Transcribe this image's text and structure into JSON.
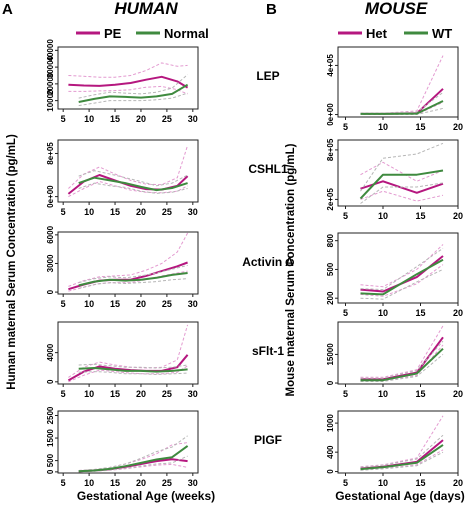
{
  "figure": {
    "panel_a": {
      "letter": "A",
      "title": "HUMAN",
      "legend": [
        "PE",
        "Normal"
      ],
      "ylabel": "Human maternal Serum Concentration (pg/mL)",
      "xlabel": "Gestational Age (weeks)"
    },
    "panel_b": {
      "letter": "B",
      "title": "MOUSE",
      "legend": [
        "Het",
        "WT"
      ],
      "ylabel": "Mouse maternal Serum Concentration (pg/mL)",
      "xlabel": "Gestational Age (days)"
    },
    "analytes": [
      "LEP",
      "CSHL1",
      "Activin A",
      "sFlt-1",
      "PIGF"
    ]
  },
  "colors": {
    "case": "#b5177f",
    "control": "#3f8a3f",
    "case_ci": "#e39ad0",
    "control_ci": "#b6b6b6"
  },
  "chart_data": [
    {
      "type": "line",
      "panel": "A",
      "analyte": "LEP",
      "ylim": [
        5000,
        42000
      ],
      "yticks": [
        "10000",
        "20000",
        "30000",
        "40000"
      ],
      "xlim": [
        4,
        31
      ],
      "xticks": [
        "5",
        "10",
        "15",
        "20",
        "25",
        "30"
      ],
      "series": [
        {
          "name": "PE",
          "x": [
            6,
            9,
            12,
            15,
            18,
            21,
            24,
            27,
            29
          ],
          "y": [
            19500,
            19000,
            18800,
            19500,
            20500,
            22500,
            24200,
            21500,
            17800
          ],
          "lower": [
            15500,
            15500,
            15800,
            16000,
            16500,
            18000,
            18500,
            16500,
            14000
          ],
          "upper": [
            25000,
            24500,
            24000,
            24000,
            25000,
            28000,
            32500,
            30500,
            31000
          ]
        },
        {
          "name": "Normal",
          "x": [
            8,
            11,
            14,
            17,
            20,
            23,
            26,
            29
          ],
          "y": [
            9200,
            11000,
            12500,
            12200,
            11800,
            12500,
            14000,
            19500
          ],
          "lower": [
            7000,
            8500,
            10000,
            10000,
            10000,
            10500,
            11500,
            14500
          ],
          "upper": [
            11500,
            13500,
            15000,
            14500,
            14000,
            15000,
            17500,
            25500
          ]
        }
      ]
    },
    {
      "type": "line",
      "panel": "A",
      "analyte": "CSHL1",
      "ylim": [
        -100000,
        1050000
      ],
      "yticks": [
        "0e+00",
        "8e+05"
      ],
      "xlim": [
        4,
        31
      ],
      "xticks": [
        "5",
        "10",
        "15",
        "20",
        "25",
        "30"
      ],
      "series": [
        {
          "name": "PE",
          "x": [
            6,
            9,
            12,
            15,
            18,
            21,
            24,
            27,
            29
          ],
          "y": [
            50000,
            280000,
            400000,
            300000,
            200000,
            140000,
            130000,
            200000,
            380000
          ],
          "lower": [
            0,
            150000,
            280000,
            200000,
            120000,
            80000,
            70000,
            100000,
            200000
          ],
          "upper": [
            150000,
            420000,
            550000,
            420000,
            300000,
            230000,
            220000,
            350000,
            950000
          ]
        },
        {
          "name": "Normal",
          "x": [
            8,
            11,
            14,
            17,
            20,
            23,
            26,
            29
          ],
          "y": [
            250000,
            350000,
            300000,
            250000,
            180000,
            120000,
            160000,
            250000
          ],
          "lower": [
            150000,
            250000,
            200000,
            170000,
            100000,
            60000,
            80000,
            150000
          ],
          "upper": [
            380000,
            480000,
            420000,
            350000,
            280000,
            200000,
            250000,
            400000
          ]
        }
      ]
    },
    {
      "type": "line",
      "panel": "A",
      "analyte": "Activin A",
      "ylim": [
        -200,
        6300
      ],
      "yticks": [
        "0",
        "3000",
        "6000"
      ],
      "xlim": [
        4,
        31
      ],
      "xticks": [
        "5",
        "10",
        "15",
        "20",
        "25",
        "30"
      ],
      "series": [
        {
          "name": "PE",
          "x": [
            6,
            9,
            12,
            15,
            18,
            21,
            24,
            27,
            29
          ],
          "y": [
            300,
            800,
            1200,
            1300,
            1300,
            1700,
            2200,
            2700,
            3100
          ],
          "lower": [
            100,
            500,
            900,
            1000,
            1000,
            1300,
            1700,
            2000,
            2200
          ],
          "upper": [
            600,
            1200,
            1600,
            1700,
            1800,
            2300,
            3000,
            4200,
            6200
          ]
        },
        {
          "name": "Normal",
          "x": [
            8,
            11,
            14,
            17,
            20,
            23,
            26,
            29
          ],
          "y": [
            700,
            1100,
            1300,
            1200,
            1300,
            1500,
            1800,
            2000
          ],
          "lower": [
            400,
            800,
            1000,
            900,
            1000,
            1100,
            1300,
            1400
          ],
          "upper": [
            1000,
            1400,
            1600,
            1500,
            1700,
            2000,
            2400,
            2800
          ]
        }
      ]
    },
    {
      "type": "line",
      "panel": "A",
      "analyte": "sFlt-1",
      "ylim": [
        -300,
        8200
      ],
      "yticks": [
        "0",
        "4000"
      ],
      "xlim": [
        4,
        31
      ],
      "xticks": [
        "5",
        "10",
        "15",
        "20",
        "25",
        "30"
      ],
      "series": [
        {
          "name": "PE",
          "x": [
            6,
            9,
            12,
            15,
            18,
            21,
            24,
            27,
            29
          ],
          "y": [
            200,
            1400,
            2100,
            1800,
            1600,
            1500,
            1500,
            2000,
            3700
          ],
          "lower": [
            0,
            900,
            1600,
            1400,
            1200,
            1100,
            1100,
            1300,
            2200
          ],
          "upper": [
            600,
            2000,
            2700,
            2300,
            2000,
            1900,
            2000,
            3000,
            7800
          ]
        },
        {
          "name": "Normal",
          "x": [
            8,
            11,
            14,
            17,
            20,
            23,
            26,
            29
          ],
          "y": [
            1800,
            1900,
            1700,
            1500,
            1500,
            1400,
            1500,
            1700
          ],
          "lower": [
            1300,
            1400,
            1300,
            1100,
            1100,
            1000,
            1100,
            1200
          ],
          "upper": [
            2300,
            2400,
            2200,
            2000,
            2000,
            1900,
            2000,
            2300
          ]
        }
      ]
    },
    {
      "type": "line",
      "panel": "A",
      "analyte": "PIGF",
      "ylim": [
        -50,
        2700
      ],
      "yticks": [
        "0",
        "500",
        "1500",
        "2500"
      ],
      "xlim": [
        4,
        31
      ],
      "xticks": [
        "5",
        "10",
        "15",
        "20",
        "25",
        "30"
      ],
      "series": [
        {
          "name": "PE",
          "x": [
            8,
            11,
            14,
            17,
            20,
            23,
            26,
            29
          ],
          "y": [
            30,
            60,
            120,
            220,
            350,
            480,
            560,
            480
          ],
          "lower": [
            10,
            30,
            70,
            140,
            220,
            300,
            330,
            200
          ],
          "upper": [
            60,
            110,
            200,
            350,
            550,
            800,
            1200,
            1300
          ]
        },
        {
          "name": "Normal",
          "x": [
            8,
            11,
            14,
            17,
            20,
            23,
            26,
            29
          ],
          "y": [
            30,
            60,
            130,
            250,
            400,
            550,
            650,
            1150
          ],
          "lower": [
            10,
            30,
            80,
            160,
            260,
            350,
            400,
            700
          ],
          "upper": [
            60,
            100,
            200,
            350,
            600,
            900,
            1100,
            1600
          ]
        }
      ]
    },
    {
      "type": "line",
      "panel": "B",
      "analyte": "LEP",
      "ylim": [
        -20000,
        550000
      ],
      "yticks": [
        "0e+00",
        "4e+05"
      ],
      "xlim": [
        4,
        20
      ],
      "xticks": [
        "5",
        "10",
        "15",
        "20"
      ],
      "series": [
        {
          "name": "Het",
          "x": [
            7,
            10,
            14.5,
            18
          ],
          "y": [
            5000,
            5000,
            10000,
            210000
          ],
          "lower": [
            0,
            0,
            0,
            100000
          ],
          "upper": [
            10000,
            10000,
            30000,
            480000
          ]
        },
        {
          "name": "WT",
          "x": [
            7,
            10,
            14.5,
            18
          ],
          "y": [
            5000,
            5000,
            8000,
            110000
          ],
          "lower": [
            0,
            0,
            0,
            50000
          ],
          "upper": [
            10000,
            10000,
            20000,
            180000
          ]
        }
      ]
    },
    {
      "type": "line",
      "panel": "B",
      "analyte": "CSHL1",
      "ylim": [
        120000,
        920000
      ],
      "yticks": [
        "2e+05",
        "8e+05"
      ],
      "xlim": [
        4,
        20
      ],
      "xticks": [
        "5",
        "10",
        "15",
        "20"
      ],
      "series": [
        {
          "name": "Het",
          "x": [
            7,
            10,
            14.5,
            18
          ],
          "y": [
            330000,
            420000,
            280000,
            390000
          ],
          "lower": [
            200000,
            300000,
            180000,
            250000
          ],
          "upper": [
            500000,
            650000,
            420000,
            550000
          ]
        },
        {
          "name": "WT",
          "x": [
            7,
            10,
            14.5,
            18
          ],
          "y": [
            210000,
            500000,
            500000,
            550000
          ],
          "lower": [
            150000,
            350000,
            350000,
            400000
          ],
          "upper": [
            300000,
            700000,
            750000,
            880000
          ]
        }
      ]
    },
    {
      "type": "line",
      "panel": "B",
      "analyte": "Activin A",
      "ylim": [
        150,
        880
      ],
      "yticks": [
        "200",
        "500",
        "800"
      ],
      "xlim": [
        4,
        20
      ],
      "xticks": [
        "5",
        "10",
        "15",
        "20"
      ],
      "series": [
        {
          "name": "Het",
          "x": [
            7,
            10,
            14.5,
            18
          ],
          "y": [
            290,
            270,
            420,
            640
          ],
          "lower": [
            240,
            220,
            350,
            550
          ],
          "upper": [
            340,
            320,
            500,
            760
          ]
        },
        {
          "name": "WT",
          "x": [
            7,
            10,
            14.5,
            18
          ],
          "y": [
            250,
            240,
            450,
            600
          ],
          "lower": [
            200,
            190,
            370,
            500
          ],
          "upper": [
            300,
            290,
            530,
            720
          ]
        }
      ]
    },
    {
      "type": "line",
      "panel": "B",
      "analyte": "sFlt-1",
      "ylim": [
        -500,
        32000
      ],
      "yticks": [
        "0",
        "15000"
      ],
      "xlim": [
        4,
        20
      ],
      "xticks": [
        "5",
        "10",
        "15",
        "20"
      ],
      "series": [
        {
          "name": "Het",
          "x": [
            7,
            10,
            14.5,
            18
          ],
          "y": [
            2000,
            2000,
            5500,
            24000
          ],
          "lower": [
            1000,
            1000,
            4000,
            20000
          ],
          "upper": [
            3000,
            3000,
            7000,
            30000
          ]
        },
        {
          "name": "WT",
          "x": [
            7,
            10,
            14.5,
            18
          ],
          "y": [
            1500,
            1500,
            5000,
            18000
          ],
          "lower": [
            800,
            800,
            3500,
            15000
          ],
          "upper": [
            2500,
            2500,
            6500,
            22000
          ]
        }
      ]
    },
    {
      "type": "line",
      "panel": "B",
      "analyte": "PIGF",
      "ylim": [
        -30,
        1250
      ],
      "yticks": [
        "0",
        "400",
        "1000"
      ],
      "xlim": [
        4,
        20
      ],
      "xticks": [
        "5",
        "10",
        "15",
        "20"
      ],
      "series": [
        {
          "name": "Het",
          "x": [
            7,
            10,
            14.5,
            18
          ],
          "y": [
            60,
            100,
            200,
            650
          ],
          "lower": [
            30,
            60,
            140,
            450
          ],
          "upper": [
            100,
            140,
            280,
            1150
          ]
        },
        {
          "name": "WT",
          "x": [
            7,
            10,
            14.5,
            18
          ],
          "y": [
            50,
            90,
            180,
            550
          ],
          "lower": [
            25,
            55,
            120,
            400
          ],
          "upper": [
            90,
            130,
            260,
            750
          ]
        }
      ]
    }
  ]
}
